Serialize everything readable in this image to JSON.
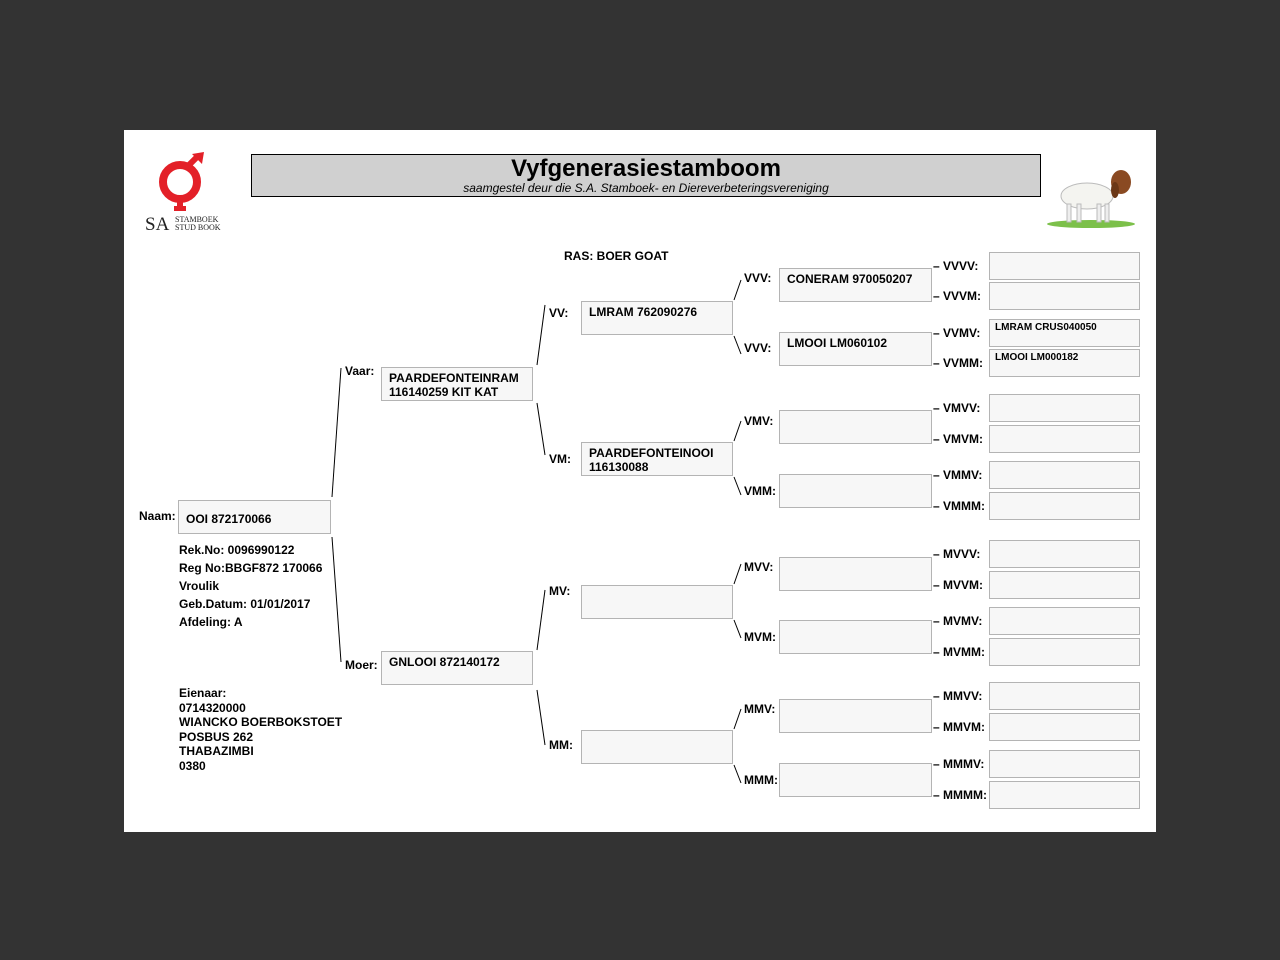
{
  "header": {
    "title": "Vyfgenerasiestamboom",
    "subtitle": "saamgestel deur die S.A. Stamboek- en Diereverbeteringsvereniging"
  },
  "logo": {
    "text_sa": "SA",
    "text_line1": "STAMBOEK",
    "text_line2": "STUD BOOK",
    "color": "#e32028"
  },
  "breed": "RAS: BOER GOAT",
  "animal": {
    "label": "Naam:",
    "name": "OOI 872170066",
    "details": [
      "Rek.No: 0096990122",
      "Reg No:BBGF872 170066",
      "Vroulik",
      "Geb.Datum: 01/01/2017",
      "Afdeling: A"
    ]
  },
  "owner": [
    "Eienaar:",
    "0714320000",
    "WIANCKO BOERBOKSTOET",
    "POSBUS 262",
    "THABAZIMBI",
    "0380"
  ],
  "pedigree": {
    "gen2": [
      {
        "label": "Vaar:",
        "value": "PAARDEFONTEINRAM\n116140259 KIT KAT"
      },
      {
        "label": "Moer:",
        "value": "GNLOOI 872140172"
      }
    ],
    "gen3": [
      {
        "label": "VV:",
        "value": "LMRAM 762090276"
      },
      {
        "label": "VM:",
        "value": "PAARDEFONTEINOOI\n116130088"
      },
      {
        "label": "MV:",
        "value": ""
      },
      {
        "label": "MM:",
        "value": ""
      }
    ],
    "gen4": [
      {
        "label": "VVV:",
        "value": "CONERAM 970050207"
      },
      {
        "label": "VVV:",
        "value": "LMOOI LM060102"
      },
      {
        "label": "VMV:",
        "value": ""
      },
      {
        "label": "VMM:",
        "value": ""
      },
      {
        "label": "MVV:",
        "value": ""
      },
      {
        "label": "MVM:",
        "value": ""
      },
      {
        "label": "MMV:",
        "value": ""
      },
      {
        "label": "MMM:",
        "value": ""
      }
    ],
    "gen5": [
      {
        "label": "VVVV:",
        "value": ""
      },
      {
        "label": "VVVM:",
        "value": ""
      },
      {
        "label": "VVMV:",
        "value": "LMRAM CRUS040050"
      },
      {
        "label": "VVMM:",
        "value": "LMOOI LM000182"
      },
      {
        "label": "VMVV:",
        "value": ""
      },
      {
        "label": "VMVM:",
        "value": ""
      },
      {
        "label": "VMMV:",
        "value": ""
      },
      {
        "label": "VMMM:",
        "value": ""
      },
      {
        "label": "MVVV:",
        "value": ""
      },
      {
        "label": "MVVM:",
        "value": ""
      },
      {
        "label": "MVMV:",
        "value": ""
      },
      {
        "label": "MVMM:",
        "value": ""
      },
      {
        "label": "MMVV:",
        "value": ""
      },
      {
        "label": "MMVM:",
        "value": ""
      },
      {
        "label": "MMMV:",
        "value": ""
      },
      {
        "label": "MMMM:",
        "value": ""
      }
    ]
  }
}
